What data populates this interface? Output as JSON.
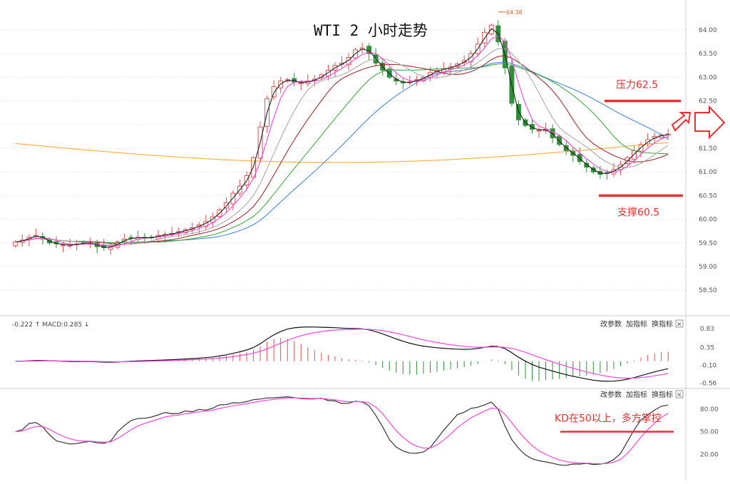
{
  "chart_data": [
    {
      "type": "candlestick",
      "title": "WTI 2 小时走势",
      "y_ticks": [
        "64.00",
        "63.50",
        "63.00",
        "62.50",
        "62.00",
        "61.50",
        "61.00",
        "60.50",
        "60.00",
        "59.50",
        "59.00",
        "58.50"
      ],
      "y_tick_values": [
        64.0,
        63.5,
        63.0,
        62.5,
        62.0,
        61.5,
        61.0,
        60.5,
        60.0,
        59.5,
        59.0,
        58.5
      ],
      "ylim": [
        58.0,
        64.6
      ],
      "peak_label": "64.38",
      "peak_value": 64.38,
      "resistance": {
        "label": "压力62.5",
        "value": 62.5
      },
      "support": {
        "label": "支撑60.5",
        "value": 60.5
      },
      "colors": {
        "up": "#e05050",
        "down": "#2f8f3a",
        "ma5": "#222222",
        "ma10": "#ff44dd",
        "ma20": "#aaaaaa",
        "ma30": "#a03030",
        "ma60": "#44aa44",
        "ma120": "#4488dd",
        "ma250": "#ffaa33",
        "level": "#e83030"
      },
      "close": [
        59.52,
        59.56,
        59.62,
        59.66,
        59.58,
        59.5,
        59.48,
        59.46,
        59.45,
        59.48,
        59.5,
        59.5,
        59.42,
        59.4,
        59.42,
        59.52,
        59.58,
        59.6,
        59.62,
        59.6,
        59.62,
        59.66,
        59.68,
        59.7,
        59.74,
        59.78,
        59.82,
        59.88,
        59.95,
        60.05,
        60.2,
        60.35,
        60.55,
        60.7,
        60.92,
        61.3,
        61.95,
        62.55,
        62.8,
        62.92,
        62.95,
        62.9,
        62.88,
        62.92,
        62.96,
        63.05,
        63.15,
        63.25,
        63.3,
        63.42,
        63.58,
        63.62,
        63.5,
        63.3,
        63.15,
        63.0,
        62.92,
        62.88,
        62.9,
        62.95,
        63.0,
        63.1,
        63.15,
        63.18,
        63.22,
        63.28,
        63.35,
        63.5,
        63.7,
        63.95,
        64.1,
        63.75,
        63.2,
        62.45,
        62.1,
        61.98,
        61.9,
        61.88,
        61.9,
        61.72,
        61.58,
        61.45,
        61.35,
        61.22,
        61.1,
        61.0,
        60.95,
        60.98,
        61.05,
        61.15,
        61.3,
        61.45,
        61.58,
        61.68,
        61.75,
        61.78,
        61.8
      ]
    },
    {
      "type": "line",
      "indicator": "MACD",
      "header": "-0.222 ↑ MACD:0.285 ↓",
      "buttons": [
        "改参数",
        "加指标",
        "换指标"
      ],
      "close_glyph": "✕",
      "y_ticks": [
        "0.83",
        "0.35",
        "-0.10",
        "-0.56"
      ],
      "y_tick_values": [
        0.83,
        0.35,
        -0.1,
        -0.56
      ],
      "ylim": [
        -0.62,
        0.92
      ]
    },
    {
      "type": "line",
      "indicator": "KD",
      "buttons": [
        "改参数",
        "加指标",
        "换指标"
      ],
      "close_glyph": "✕",
      "y_ticks": [
        "80.00",
        "50.00",
        "20.00"
      ],
      "y_tick_values": [
        80,
        50,
        20
      ],
      "ylim": [
        10,
        95
      ],
      "annotation": "KD在50以上，多方掌控",
      "level": 50
    }
  ]
}
